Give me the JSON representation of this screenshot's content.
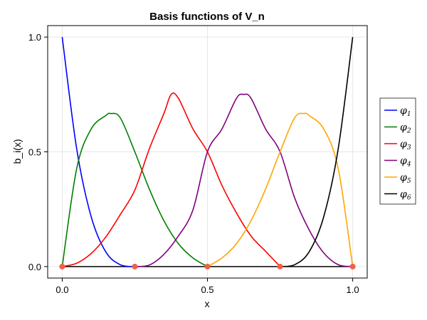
{
  "chart_data": {
    "type": "line",
    "title": "Basis functions of V_n",
    "xlabel": "x",
    "ylabel": "b_i(x)",
    "xlim": [
      -0.05,
      1.05
    ],
    "ylim": [
      -0.05,
      1.05
    ],
    "xticks": [
      0.0,
      0.5,
      1.0
    ],
    "xtick_labels": [
      "0.0",
      "0.5",
      "1.0"
    ],
    "yticks": [
      0.0,
      0.5,
      1.0
    ],
    "ytick_labels": [
      "0.0",
      "0.5",
      "1.0"
    ],
    "grid": true,
    "legend_position": "right",
    "knots": [
      0.0,
      0.25,
      0.5,
      0.75,
      1.0
    ],
    "knot_color": "#f0604a",
    "series": [
      {
        "name": "φ1",
        "symbol": "φ",
        "sub": "1",
        "color": "#0000ff",
        "x": [
          0,
          0.05,
          0.1,
          0.15,
          0.2,
          0.25
        ],
        "y": [
          1.0,
          0.512,
          0.216,
          0.064,
          0.008,
          0.0
        ]
      },
      {
        "name": "φ2",
        "symbol": "φ",
        "sub": "2",
        "color": "#008000",
        "x": [
          0,
          0.05,
          0.1,
          0.15,
          0.1667,
          0.2,
          0.25,
          0.3,
          0.35,
          0.4,
          0.45,
          0.5
        ],
        "y": [
          0.0,
          0.428,
          0.6,
          0.658,
          0.667,
          0.648,
          0.5,
          0.3375,
          0.2,
          0.1,
          0.0375,
          0.0
        ]
      },
      {
        "name": "φ3",
        "symbol": "φ",
        "sub": "3",
        "color": "#ff0000",
        "x": [
          0,
          0.05,
          0.1,
          0.15,
          0.2,
          0.25,
          0.3,
          0.35,
          0.375,
          0.4,
          0.45,
          0.5,
          0.55,
          0.6,
          0.65,
          0.7,
          0.75
        ],
        "y": [
          0.0,
          0.0147,
          0.0573,
          0.1287,
          0.2267,
          0.3333,
          0.5133,
          0.6667,
          0.75,
          0.7333,
          0.6,
          0.5,
          0.3533,
          0.2333,
          0.1333,
          0.0667,
          0.0
        ]
      },
      {
        "name": "φ4",
        "symbol": "φ",
        "sub": "4",
        "color": "#800080",
        "x": [
          0.25,
          0.3,
          0.35,
          0.4,
          0.45,
          0.5,
          0.55,
          0.6,
          0.625,
          0.65,
          0.7,
          0.75,
          0.8,
          0.85,
          0.9,
          0.95,
          1.0
        ],
        "y": [
          0.0,
          0.0067,
          0.0533,
          0.1333,
          0.2467,
          0.5,
          0.6,
          0.7333,
          0.75,
          0.7333,
          0.6,
          0.5,
          0.3,
          0.16,
          0.06,
          0.008,
          0.0
        ]
      },
      {
        "name": "φ5",
        "symbol": "φ",
        "sub": "5",
        "color": "#ffa500",
        "x": [
          0.5,
          0.55,
          0.6,
          0.65,
          0.7,
          0.75,
          0.8,
          0.8333,
          0.85,
          0.9,
          0.95,
          1.0
        ],
        "y": [
          0.0,
          0.0375,
          0.1,
          0.2,
          0.3375,
          0.5,
          0.648,
          0.667,
          0.658,
          0.6,
          0.428,
          0.0
        ]
      },
      {
        "name": "φ6",
        "symbol": "φ",
        "sub": "6",
        "color": "#000000",
        "x": [
          0.75,
          0.8,
          0.85,
          0.9,
          0.95,
          1.0
        ],
        "y": [
          0.0,
          0.008,
          0.064,
          0.216,
          0.512,
          1.0
        ]
      }
    ]
  }
}
